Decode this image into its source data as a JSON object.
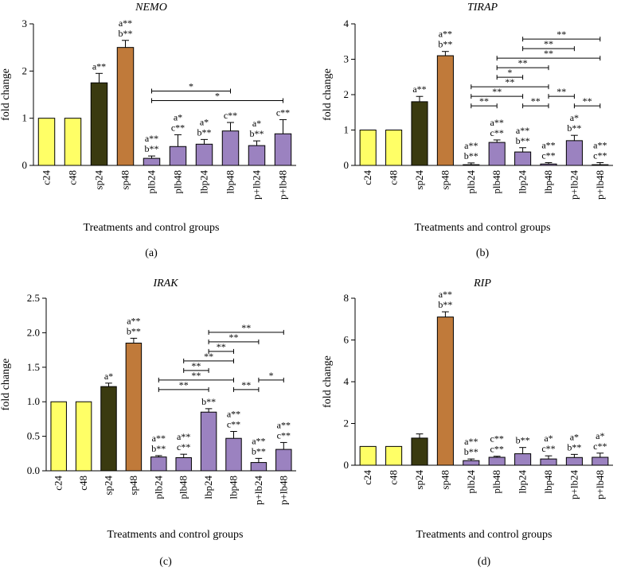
{
  "figure": {
    "panels": [
      {
        "panel_label": "(a)",
        "chart_data": {
          "type": "bar",
          "title": "NEMO",
          "xlabel": "Treatments and control groups",
          "ylabel": "fold change",
          "ylim": [
            0,
            3
          ],
          "yticks": [
            "0",
            "1",
            "2",
            "3"
          ],
          "categories": [
            "c24",
            "c48",
            "sp24",
            "sp48",
            "plb24",
            "plb48",
            "lbp24",
            "lbp48",
            "p+lb24",
            "p+lb48"
          ],
          "values": [
            1.0,
            1.0,
            1.75,
            2.5,
            0.15,
            0.4,
            0.45,
            0.73,
            0.42,
            0.67
          ],
          "errors": [
            0,
            0,
            0.2,
            0.15,
            0.05,
            0.25,
            0.1,
            0.18,
            0.1,
            0.3
          ],
          "colors": [
            "#ffff66",
            "#ffff66",
            "#3a3a10",
            "#c07a3a",
            "#9b82c0",
            "#9b82c0",
            "#9b82c0",
            "#9b82c0",
            "#9b82c0",
            "#9b82c0"
          ],
          "annotations": [
            [],
            [],
            [
              "a**"
            ],
            [
              "a**",
              "b**"
            ],
            [
              "a**",
              "b**"
            ],
            [
              "a*",
              "c**"
            ],
            [
              "a*",
              "b**"
            ],
            [
              "c**"
            ],
            [
              "a*",
              "b**"
            ],
            [
              "c**"
            ]
          ],
          "comparison_brackets": [
            {
              "from": "plb24",
              "to": "p+lb48",
              "label": "*"
            },
            {
              "from": "plb24",
              "to": "lbp48",
              "label": "*"
            }
          ]
        }
      },
      {
        "panel_label": "(b)",
        "chart_data": {
          "type": "bar",
          "title": "TIRAP",
          "xlabel": "Treatments and control groups",
          "ylabel": "fold change",
          "ylim": [
            0,
            4
          ],
          "yticks": [
            "0",
            "1",
            "2",
            "3",
            "4"
          ],
          "categories": [
            "c24",
            "c48",
            "sp24",
            "sp48",
            "plb24",
            "plb48",
            "lbp24",
            "lbp48",
            "p+lb24",
            "p+lb48"
          ],
          "values": [
            1.0,
            1.0,
            1.8,
            3.1,
            0.02,
            0.65,
            0.38,
            0.04,
            0.7,
            0.02
          ],
          "errors": [
            0,
            0,
            0.15,
            0.12,
            0.05,
            0.07,
            0.12,
            0.04,
            0.15,
            0.06
          ],
          "colors": [
            "#ffff66",
            "#ffff66",
            "#3a3a10",
            "#c07a3a",
            "#9b82c0",
            "#9b82c0",
            "#9b82c0",
            "#9b82c0",
            "#9b82c0",
            "#9b82c0"
          ],
          "annotations": [
            [],
            [],
            [
              "a**"
            ],
            [
              "a**",
              "b**"
            ],
            [
              "a**",
              "b**"
            ],
            [
              "a**",
              "c**"
            ],
            [
              "a**",
              "b**"
            ],
            [
              "a**",
              "c**"
            ],
            [
              "a*",
              "b**"
            ],
            [
              "a**",
              "c**"
            ]
          ],
          "comparison_brackets": [
            {
              "from": "plb24",
              "to": "plb48",
              "label": "**"
            },
            {
              "from": "lbp24",
              "to": "lbp48",
              "label": "**"
            },
            {
              "from": "lbp48",
              "to": "p+lb24",
              "label": "**"
            },
            {
              "from": "plb24",
              "to": "lbp24",
              "label": "**"
            },
            {
              "from": "p+lb24",
              "to": "p+lb48",
              "label": "**"
            },
            {
              "from": "plb24",
              "to": "lbp48",
              "label": "**"
            },
            {
              "from": "plb48",
              "to": "lbp24",
              "label": "*"
            },
            {
              "from": "plb48",
              "to": "lbp48",
              "label": "**"
            },
            {
              "from": "plb48",
              "to": "p+lb48",
              "label": "**"
            },
            {
              "from": "lbp24",
              "to": "p+lb24",
              "label": "**"
            },
            {
              "from": "lbp24",
              "to": "p+lb48",
              "label": "**"
            }
          ]
        }
      },
      {
        "panel_label": "(c)",
        "chart_data": {
          "type": "bar",
          "title": "IRAK",
          "xlabel": "Treatments and control groups",
          "ylabel": "fold change",
          "ylim": [
            0,
            2.5
          ],
          "yticks": [
            "0.0",
            "0.5",
            "1.0",
            "1.5",
            "2.0",
            "2.5"
          ],
          "categories": [
            "c24",
            "c48",
            "sp24",
            "sp48",
            "plb24",
            "plb48",
            "lbp24",
            "lbp48",
            "p+lb24",
            "p+lb48"
          ],
          "values": [
            1.0,
            1.0,
            1.22,
            1.85,
            0.2,
            0.19,
            0.85,
            0.47,
            0.12,
            0.31
          ],
          "errors": [
            0,
            0,
            0.05,
            0.07,
            0.02,
            0.05,
            0.05,
            0.1,
            0.06,
            0.1
          ],
          "colors": [
            "#ffff66",
            "#ffff66",
            "#3a3a10",
            "#c07a3a",
            "#9b82c0",
            "#9b82c0",
            "#9b82c0",
            "#9b82c0",
            "#9b82c0",
            "#9b82c0"
          ],
          "annotations": [
            [],
            [],
            [
              "a*"
            ],
            [
              "a**",
              "b**"
            ],
            [
              "a**",
              "b**"
            ],
            [
              "a**",
              "c**"
            ],
            [
              "b**"
            ],
            [
              "a**",
              "c**"
            ],
            [
              "a**",
              "b**"
            ],
            [
              "a**",
              "c**"
            ]
          ],
          "comparison_brackets": [
            {
              "from": "plb24",
              "to": "lbp24",
              "label": "**"
            },
            {
              "from": "lbp48",
              "to": "p+lb24",
              "label": "**"
            },
            {
              "from": "plb24",
              "to": "lbp48",
              "label": "**"
            },
            {
              "from": "p+lb24",
              "to": "p+lb48",
              "label": "*"
            },
            {
              "from": "plb48",
              "to": "lbp24",
              "label": "**"
            },
            {
              "from": "plb48",
              "to": "lbp48",
              "label": "**"
            },
            {
              "from": "lbp24",
              "to": "lbp48",
              "label": "**"
            },
            {
              "from": "lbp24",
              "to": "p+lb24",
              "label": "**"
            },
            {
              "from": "lbp24",
              "to": "p+lb48",
              "label": "**"
            }
          ]
        }
      },
      {
        "panel_label": "(d)",
        "chart_data": {
          "type": "bar",
          "title": "RIP",
          "xlabel": "Treatments and control groups",
          "ylabel": "fold change",
          "ylim": [
            0,
            8
          ],
          "yticks": [
            "0",
            "2",
            "4",
            "6",
            "8"
          ],
          "categories": [
            "c24",
            "c48",
            "sp24",
            "sp48",
            "plb24",
            "plb48",
            "lbp24",
            "lbp48",
            "p+lb24",
            "p+lb48"
          ],
          "values": [
            0.9,
            0.9,
            1.3,
            7.1,
            0.22,
            0.38,
            0.55,
            0.3,
            0.37,
            0.38
          ],
          "errors": [
            0,
            0,
            0.2,
            0.25,
            0.08,
            0.05,
            0.3,
            0.15,
            0.15,
            0.2
          ],
          "colors": [
            "#ffff66",
            "#ffff66",
            "#3a3a10",
            "#c07a3a",
            "#9b82c0",
            "#9b82c0",
            "#9b82c0",
            "#9b82c0",
            "#9b82c0",
            "#9b82c0"
          ],
          "annotations": [
            [],
            [],
            [],
            [
              "a**",
              "b**"
            ],
            [
              "a**",
              "b**"
            ],
            [
              "c**",
              "c**"
            ],
            [
              "b**"
            ],
            [
              "a*",
              "c**"
            ],
            [
              "a*",
              "b**"
            ],
            [
              "a*",
              "c**"
            ]
          ],
          "comparison_brackets": []
        }
      }
    ]
  }
}
